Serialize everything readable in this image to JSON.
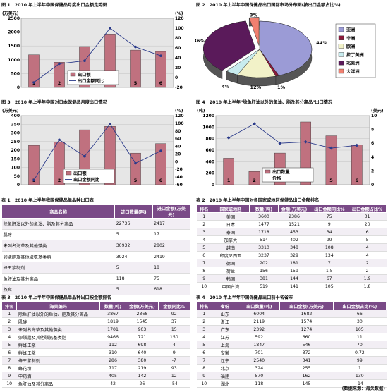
{
  "fig1": {
    "title": "图 1　2010 年上半年中国保健品月度出口金额走势图",
    "left_unit": "(万美元)",
    "right_unit": "(%)",
    "legend": [
      "出口额",
      "出口金额同比"
    ],
    "chart_data": {
      "type": "bar",
      "categories": [
        "1",
        "2",
        "3",
        "4",
        "5",
        "6"
      ],
      "series": [
        {
          "name": "出口额",
          "values": [
            1180,
            910,
            1480,
            1930,
            1350,
            1300
          ],
          "axis": "left"
        },
        {
          "name": "出口金额同比",
          "values": [
            -10,
            28,
            34,
            100,
            62,
            44
          ],
          "axis": "right",
          "type": "line"
        }
      ],
      "ylim": [
        0,
        2500
      ],
      "y2lim": [
        -20,
        120
      ],
      "yticks": [
        "0",
        "500",
        "1000",
        "1500",
        "2000",
        "2500"
      ],
      "y2ticks": [
        "-20",
        "0",
        "20",
        "40",
        "60",
        "80",
        "100",
        "120"
      ]
    }
  },
  "fig2": {
    "title": "图 2　2010 年上半年中国保健品出口国际市场分布图(按出口金额占比%)",
    "chart_data": {
      "type": "pie",
      "labels": [
        "亚洲",
        "非洲",
        "欧洲",
        "拉丁美洲",
        "北美洲",
        "大洋洲"
      ],
      "values": [
        44,
        1,
        12,
        4,
        36,
        3
      ],
      "value_labels": [
        "44%",
        "1%",
        "12%",
        "4%",
        "36%",
        "3%"
      ],
      "colors": [
        "#9b9bd6",
        "#8b1a3a",
        "#f2f2c8",
        "#c8ecef",
        "#5a1a5a",
        "#f08070"
      ]
    }
  },
  "fig3": {
    "title": "图 3　2010 年上半年中国对日本保健品月度出口情况",
    "left_unit": "(万美元)",
    "right_unit": "(%)",
    "legend": [
      "出口额",
      "出口金额同比"
    ],
    "chart_data": {
      "type": "bar",
      "categories": [
        "1",
        "2",
        "3",
        "4",
        "5",
        "6"
      ],
      "series": [
        {
          "name": "出口额",
          "values": [
            228,
            248,
            318,
            338,
            183,
            238
          ],
          "axis": "left"
        },
        {
          "name": "出口金额同比",
          "values": [
            -48,
            57,
            14,
            98,
            -4,
            28
          ],
          "axis": "right",
          "type": "line"
        }
      ],
      "ylim": [
        0,
        400
      ],
      "y2lim": [
        -60,
        120
      ],
      "yticks": [
        "0",
        "50",
        "100",
        "150",
        "200",
        "250",
        "300",
        "350",
        "400"
      ],
      "y2ticks": [
        "-60",
        "-40",
        "-20",
        "0",
        "20",
        "40",
        "60",
        "80",
        "100",
        "120"
      ]
    }
  },
  "fig4": {
    "title": "图 4　2010 年上半年\"除鱼肝油以外的鱼油、脂及其分离品\"出口情况",
    "left_unit": "(吨)",
    "right_unit": "(美元)",
    "legend": [
      "出口数量",
      "价格"
    ],
    "chart_data": {
      "type": "bar",
      "categories": [
        "1",
        "2",
        "3",
        "4",
        "5",
        "6"
      ],
      "series": [
        {
          "name": "出口数量",
          "values": [
            460,
            230,
            550,
            1090,
            850,
            690
          ],
          "axis": "left"
        },
        {
          "name": "价格",
          "values": [
            6.8,
            8.8,
            6.0,
            6.2,
            5.3,
            5.7
          ],
          "axis": "right",
          "type": "line"
        }
      ],
      "ylim": [
        0,
        1200
      ],
      "y2lim": [
        0,
        10
      ],
      "yticks": [
        "0",
        "200",
        "400",
        "600",
        "800",
        "1000",
        "1200"
      ],
      "y2ticks": [
        "0",
        "2",
        "4",
        "6",
        "8",
        "10"
      ]
    }
  },
  "table1": {
    "title": "表 1　2010 年上半年我国保健品单品种出口表",
    "headers": [
      "商品名称",
      "进口数量(吨)",
      "进口金额(万美元)"
    ],
    "rows": [
      [
        "除鱼肝油以外的鱼油、脂及其分离品",
        "22736",
        "2417"
      ],
      [
        "肌醇",
        "5",
        "17"
      ],
      [
        "未列名海草及其他藻类",
        "30932",
        "2802"
      ],
      [
        "卵磷脂及其他磷氨基类脂",
        "3924",
        "2419"
      ],
      [
        "蜂王浆制剂",
        "5",
        "18"
      ],
      [
        "鱼肝油及其分离品",
        "118",
        "75"
      ],
      [
        "燕窝",
        "5",
        "618"
      ]
    ]
  },
  "table2": {
    "title": "表 2　2010 年上半年中国对各国家或地区保健品出口金额排名",
    "headers": [
      "排名",
      "国家或地区",
      "数量(吨)",
      "金额(万美元)",
      "出口金额同比%",
      "出口金额占比%"
    ],
    "rows": [
      [
        "1",
        "美国",
        "3600",
        "2386",
        "75",
        "31"
      ],
      [
        "2",
        "日本",
        "1477",
        "1521",
        "9",
        "20"
      ],
      [
        "3",
        "泰国",
        "1718",
        "453",
        "34",
        "6"
      ],
      [
        "4",
        "加拿大",
        "514",
        "402",
        "99",
        "5"
      ],
      [
        "5",
        "越南",
        "3310",
        "348",
        "108",
        "4"
      ],
      [
        "6",
        "印度尼西亚",
        "3237",
        "329",
        "134",
        "4"
      ],
      [
        "7",
        "德国",
        "202",
        "181",
        "7",
        "2"
      ],
      [
        "8",
        "荷兰",
        "156",
        "159",
        "1.5",
        "2"
      ],
      [
        "9",
        "韩国",
        "381",
        "144",
        "67",
        "1.9"
      ],
      [
        "10",
        "中国台湾",
        "519",
        "141",
        "105",
        "1.8"
      ]
    ]
  },
  "table3": {
    "title": "表 3　2010 年上半年中国保健品单品种出口按金额排名",
    "headers": [
      "排名",
      "海关编码",
      "数量(吨)",
      "金额(万美元)",
      "金额同比%"
    ],
    "rows": [
      [
        "1",
        "除鱼肝油以外的鱼油、脂及其分离品",
        "3867",
        "2368",
        "92"
      ],
      [
        "2",
        "肌醇",
        "1819",
        "1545",
        "37"
      ],
      [
        "3",
        "未列名海草及其他藻类",
        "1701",
        "903",
        "15"
      ],
      [
        "4",
        "卵磷脂及其他磷氨基类脂",
        "9466",
        "721",
        "150"
      ],
      [
        "5",
        "鲜蜂王浆",
        "112",
        "698",
        "4"
      ],
      [
        "6",
        "鲜蜂王浆",
        "310",
        "640",
        "9"
      ],
      [
        "7",
        "蜂王浆制剂",
        "286",
        "380",
        "-7"
      ],
      [
        "8",
        "蜂花粉",
        "717",
        "219",
        "93"
      ],
      [
        "9",
        "中药酒",
        "405",
        "142",
        "12"
      ],
      [
        "10",
        "鱼肝油及其分离品",
        "42",
        "26",
        "-54"
      ]
    ]
  },
  "table4": {
    "title": "表 4　2010 年上半年中国保健品出口前十名省市",
    "headers": [
      "排名",
      "省份",
      "出口数量(吨)",
      "出口金额(万美元)",
      "出口金额占比(%)"
    ],
    "rows": [
      [
        "1",
        "山东",
        "6004",
        "1682",
        "66"
      ],
      [
        "2",
        "浙江",
        "2119",
        "1574",
        "30"
      ],
      [
        "3",
        "广东",
        "2392",
        "1274",
        "105"
      ],
      [
        "4",
        "江苏",
        "592",
        "660",
        "11"
      ],
      [
        "5",
        "上海",
        "1847",
        "546",
        "70"
      ],
      [
        "6",
        "安徽",
        "701",
        "372",
        "0.72"
      ],
      [
        "7",
        "辽宁",
        "2540",
        "341",
        "99"
      ],
      [
        "8",
        "北京",
        "324",
        "255",
        "1"
      ],
      [
        "9",
        "福建",
        "570",
        "162",
        "130"
      ],
      [
        "10",
        "湖北",
        "118",
        "145",
        "-14"
      ]
    ]
  },
  "source": "(数据来源：海关数据)"
}
